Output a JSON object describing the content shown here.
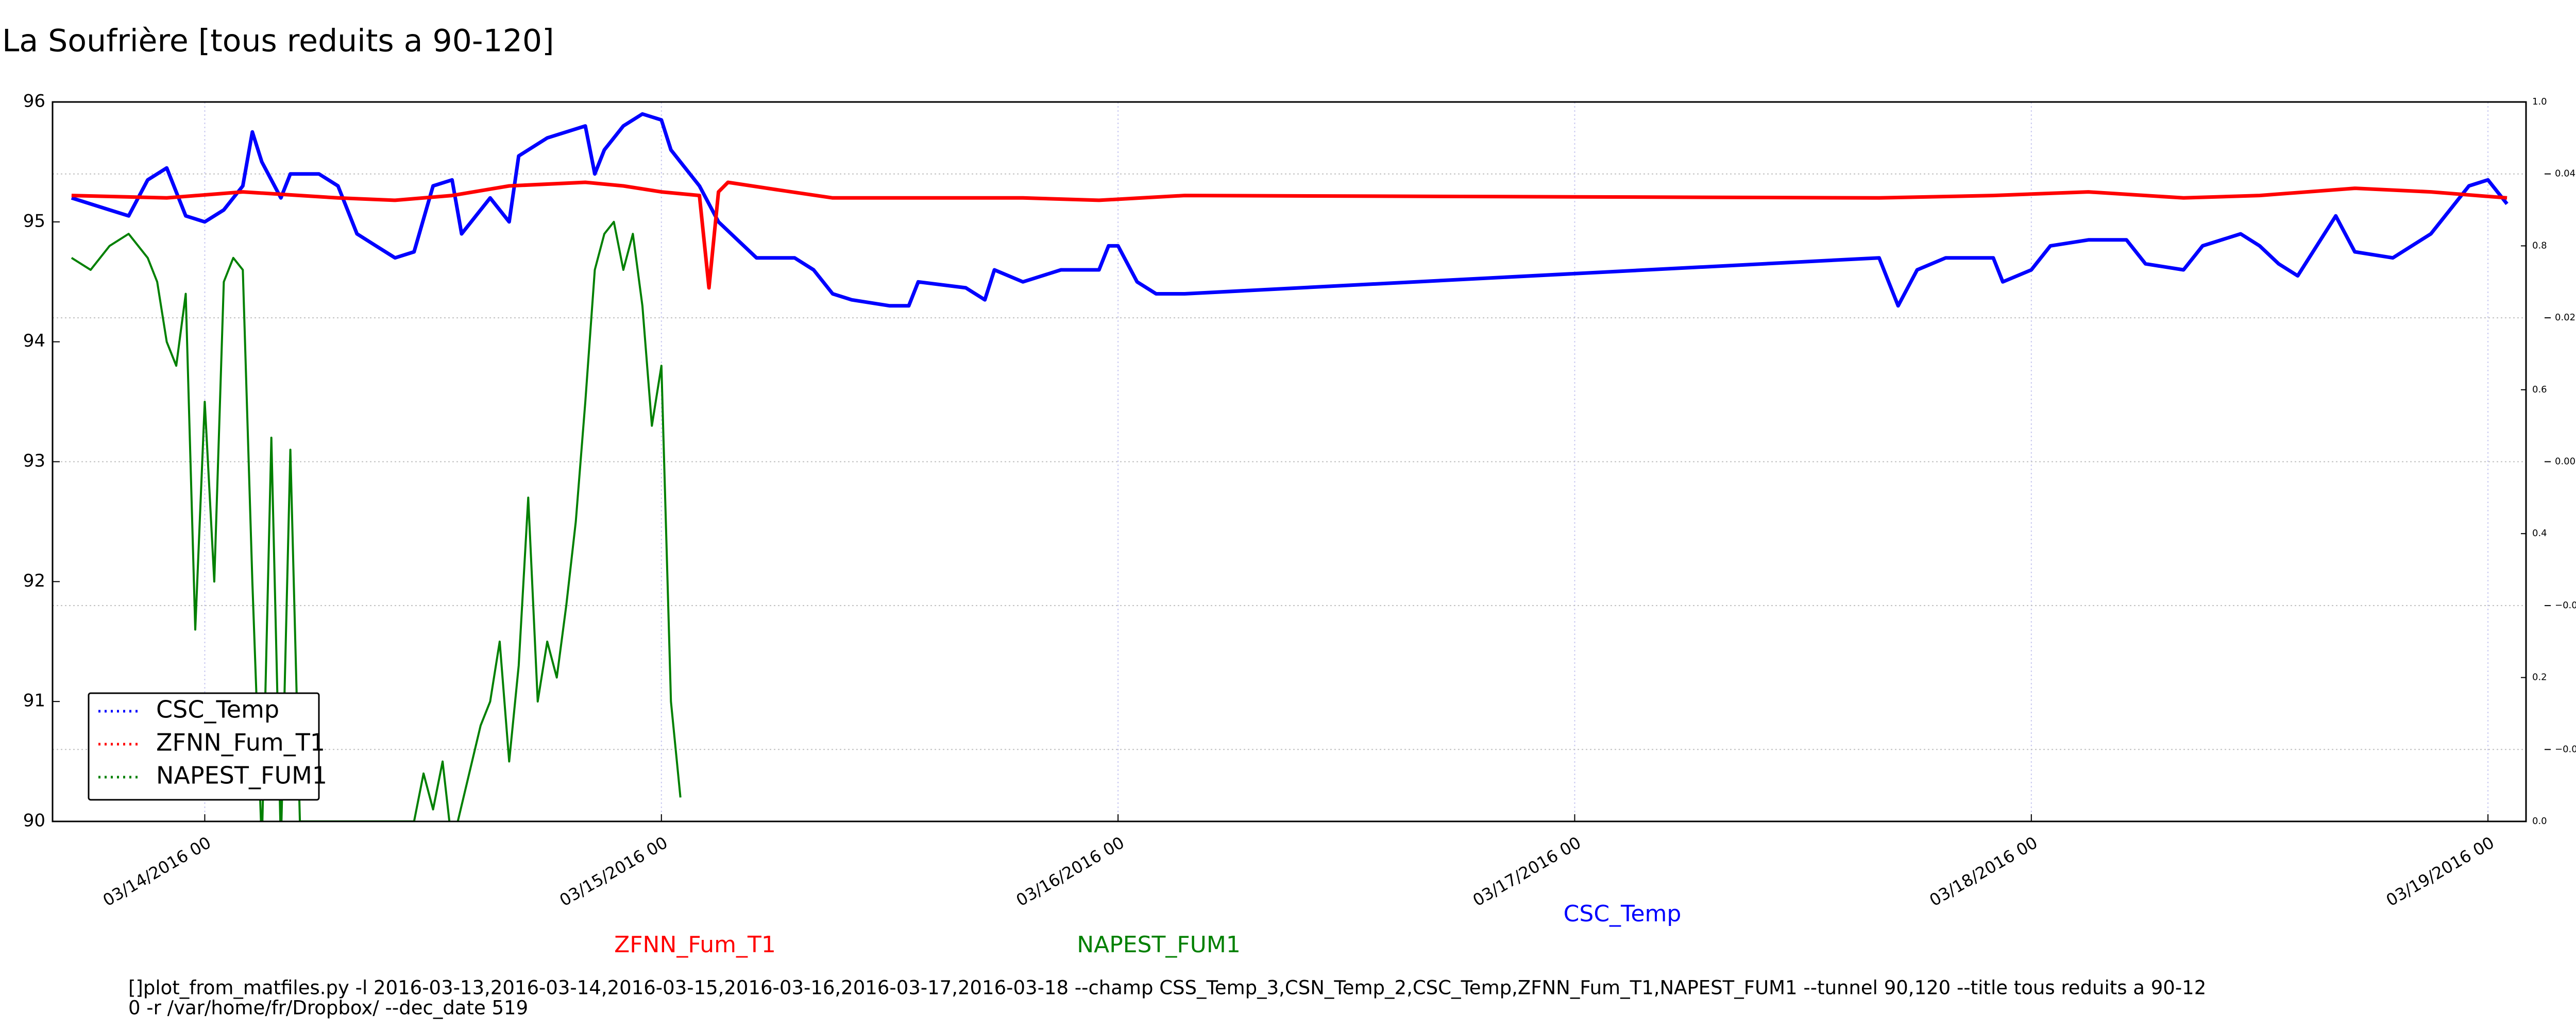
{
  "chart_data": {
    "type": "line",
    "title": "La Soufrière [tous reduits a 90-120]",
    "xlim": [
      "2016-03-13 16:00",
      "2016-03-19 02:00"
    ],
    "xticks": [
      {
        "value": "2016-03-14 00:00",
        "label": "03/14/2016 00"
      },
      {
        "value": "2016-03-15 00:00",
        "label": "03/15/2016 00"
      },
      {
        "value": "2016-03-16 00:00",
        "label": "03/16/2016 00"
      },
      {
        "value": "2016-03-17 00:00",
        "label": "03/17/2016 00"
      },
      {
        "value": "2016-03-18 00:00",
        "label": "03/18/2016 00"
      },
      {
        "value": "2016-03-19 00:00",
        "label": "03/19/2016 00"
      }
    ],
    "ylim": [
      90,
      96
    ],
    "yticks": [
      90,
      91,
      92,
      93,
      94,
      95,
      96
    ],
    "y2lim": [
      0,
      1
    ],
    "y2ticks": [
      {
        "value": 0,
        "label": "0.0"
      },
      0.2,
      0.4,
      0.6,
      0.8,
      {
        "value": 1,
        "label": "1.0"
      }
    ],
    "y3lim": [
      -0.05,
      0.05
    ],
    "y3ticks": [
      {
        "value": -0.04,
        "label": "−0.04"
      },
      {
        "value": -0.02,
        "label": "−0.02"
      },
      {
        "value": 0,
        "label": "0.00"
      },
      0.02,
      0.04
    ],
    "grid": true,
    "legend": "lower left",
    "series": [
      {
        "name": "CSC_Temp",
        "color": "#0000ff",
        "x": [
          "2016-03-13 17:00",
          "2016-03-13 19:00",
          "2016-03-13 20:00",
          "2016-03-13 21:00",
          "2016-03-13 22:00",
          "2016-03-13 23:00",
          "2016-03-14 00:00",
          "2016-03-14 01:00",
          "2016-03-14 02:00",
          "2016-03-14 02:30",
          "2016-03-14 03:00",
          "2016-03-14 04:00",
          "2016-03-14 04:30",
          "2016-03-14 06:00",
          "2016-03-14 07:00",
          "2016-03-14 08:00",
          "2016-03-14 09:00",
          "2016-03-14 10:00",
          "2016-03-14 11:00",
          "2016-03-14 12:00",
          "2016-03-14 13:00",
          "2016-03-14 13:30",
          "2016-03-14 14:00",
          "2016-03-14 15:00",
          "2016-03-14 16:00",
          "2016-03-14 16:30",
          "2016-03-14 18:00",
          "2016-03-14 20:00",
          "2016-03-14 20:30",
          "2016-03-14 21:00",
          "2016-03-14 22:00",
          "2016-03-14 23:00",
          "2016-03-15 00:00",
          "2016-03-15 00:30",
          "2016-03-15 01:00",
          "2016-03-15 02:00",
          "2016-03-15 03:00",
          "2016-03-15 04:00",
          "2016-03-15 05:00",
          "2016-03-15 07:00",
          "2016-03-15 08:00",
          "2016-03-15 09:00",
          "2016-03-15 10:00",
          "2016-03-15 12:00",
          "2016-03-15 13:00",
          "2016-03-15 13:30",
          "2016-03-15 16:00",
          "2016-03-15 17:00",
          "2016-03-15 17:30",
          "2016-03-15 19:00",
          "2016-03-15 21:00",
          "2016-03-15 23:00",
          "2016-03-15 23:30",
          "2016-03-16 00:00",
          "2016-03-16 01:00",
          "2016-03-16 02:00",
          "2016-03-16 03:30",
          "2016-03-17 16:00",
          "2016-03-17 16:30",
          "2016-03-17 17:00",
          "2016-03-17 18:00",
          "2016-03-17 19:30",
          "2016-03-17 22:00",
          "2016-03-17 22:30",
          "2016-03-18 00:00",
          "2016-03-18 01:00",
          "2016-03-18 03:00",
          "2016-03-18 05:00",
          "2016-03-18 06:00",
          "2016-03-18 08:00",
          "2016-03-18 09:00",
          "2016-03-18 11:00",
          "2016-03-18 12:00",
          "2016-03-18 13:00",
          "2016-03-18 14:00",
          "2016-03-18 15:00",
          "2016-03-18 16:00",
          "2016-03-18 17:00",
          "2016-03-18 19:00",
          "2016-03-18 21:00",
          "2016-03-18 22:00",
          "2016-03-18 23:00",
          "2016-03-19 00:00",
          "2016-03-19 01:00"
        ],
        "values": [
          95.2,
          95.1,
          95.05,
          95.35,
          95.45,
          95.05,
          95.0,
          95.1,
          95.3,
          95.75,
          95.5,
          95.2,
          95.4,
          95.4,
          95.3,
          94.9,
          94.8,
          94.7,
          94.75,
          95.3,
          95.35,
          94.9,
          95.0,
          95.2,
          95.0,
          95.55,
          95.7,
          95.8,
          95.4,
          95.6,
          95.8,
          95.9,
          95.85,
          95.6,
          95.5,
          95.3,
          95.0,
          94.85,
          94.7,
          94.7,
          94.6,
          94.4,
          94.35,
          94.3,
          94.3,
          94.5,
          94.45,
          94.35,
          94.6,
          94.5,
          94.6,
          94.6,
          94.8,
          94.8,
          94.5,
          94.4,
          94.4,
          94.7,
          94.5,
          94.3,
          94.6,
          94.7,
          94.7,
          94.5,
          94.6,
          94.8,
          94.85,
          94.85,
          94.65,
          94.6,
          94.8,
          94.9,
          94.8,
          94.65,
          94.55,
          94.8,
          95.05,
          94.75,
          94.7,
          94.9,
          95.1,
          95.3,
          95.35,
          95.15
        ]
      },
      {
        "name": "ZFNN_Fum_T1",
        "color": "#ff0000",
        "x": [
          "2016-03-13 17:00",
          "2016-03-13 22:00",
          "2016-03-14 02:00",
          "2016-03-14 07:00",
          "2016-03-14 10:00",
          "2016-03-14 13:00",
          "2016-03-14 16:00",
          "2016-03-14 20:00",
          "2016-03-14 22:00",
          "2016-03-15 00:00",
          "2016-03-15 02:00",
          "2016-03-15 02:30",
          "2016-03-15 03:00",
          "2016-03-15 03:30",
          "2016-03-15 06:00",
          "2016-03-15 09:00",
          "2016-03-15 14:00",
          "2016-03-15 19:00",
          "2016-03-15 23:00",
          "2016-03-16 03:30",
          "2016-03-17 16:00",
          "2016-03-17 22:00",
          "2016-03-18 03:00",
          "2016-03-18 08:00",
          "2016-03-18 12:00",
          "2016-03-18 17:00",
          "2016-03-18 21:00",
          "2016-03-19 01:00"
        ],
        "values": [
          95.22,
          95.2,
          95.25,
          95.2,
          95.18,
          95.22,
          95.3,
          95.33,
          95.3,
          95.25,
          95.22,
          94.45,
          95.25,
          95.33,
          95.27,
          95.2,
          95.2,
          95.2,
          95.18,
          95.22,
          95.2,
          95.22,
          95.25,
          95.2,
          95.22,
          95.28,
          95.25,
          95.2
        ]
      },
      {
        "name": "NAPEST_FUM1",
        "color": "#008000",
        "x": [
          "2016-03-13 17:00",
          "2016-03-13 18:00",
          "2016-03-13 19:00",
          "2016-03-13 20:00",
          "2016-03-13 21:00",
          "2016-03-13 21:30",
          "2016-03-13 22:00",
          "2016-03-13 22:30",
          "2016-03-13 23:00",
          "2016-03-13 23:30",
          "2016-03-14 00:00",
          "2016-03-14 00:30",
          "2016-03-14 01:00",
          "2016-03-14 01:30",
          "2016-03-14 02:00",
          "2016-03-14 02:30",
          "2016-03-14 03:00",
          "2016-03-14 03:30",
          "2016-03-14 04:00",
          "2016-03-14 04:30",
          "2016-03-14 05:00",
          "2016-03-14 06:00",
          "2016-03-14 11:00",
          "2016-03-14 11:30",
          "2016-03-14 12:00",
          "2016-03-14 12:30",
          "2016-03-14 13:00",
          "2016-03-14 14:30",
          "2016-03-14 15:00",
          "2016-03-14 15:30",
          "2016-03-14 16:00",
          "2016-03-14 16:30",
          "2016-03-14 17:00",
          "2016-03-14 17:30",
          "2016-03-14 18:00",
          "2016-03-14 18:30",
          "2016-03-14 19:00",
          "2016-03-14 19:30",
          "2016-03-14 20:00",
          "2016-03-14 20:30",
          "2016-03-14 21:00",
          "2016-03-14 21:30",
          "2016-03-14 22:00",
          "2016-03-14 22:30",
          "2016-03-14 23:00",
          "2016-03-14 23:30",
          "2016-03-15 00:00",
          "2016-03-15 00:30",
          "2016-03-15 01:00"
        ],
        "values": [
          94.7,
          94.6,
          94.8,
          94.9,
          94.7,
          94.5,
          94.0,
          93.8,
          94.4,
          91.6,
          93.5,
          92.0,
          94.5,
          94.7,
          94.6,
          92.0,
          89.8,
          93.2,
          89.8,
          93.1,
          90.0,
          90.0,
          90.0,
          90.4,
          90.1,
          90.5,
          89.8,
          90.8,
          91.0,
          91.5,
          90.5,
          91.3,
          92.7,
          91.0,
          91.5,
          91.2,
          91.8,
          92.5,
          93.5,
          94.6,
          94.9,
          95.0,
          94.6,
          94.9,
          94.3,
          93.3,
          93.8,
          91.0,
          90.2
        ]
      }
    ],
    "annotations": [
      {
        "text": "CSC_Temp",
        "color": "#0000ff"
      },
      {
        "text": "ZFNN_Fum_T1",
        "color": "#ff0000"
      },
      {
        "text": "NAPEST_FUM1",
        "color": "#008000"
      }
    ],
    "footer": [
      "[]plot_from_matfiles.py -l 2016-03-13,2016-03-14,2016-03-15,2016-03-16,2016-03-17,2016-03-18 --champ CSS_Temp_3,CSN_Temp_2,CSC_Temp,ZFNN_Fum_T1,NAPEST_FUM1 --tunnel 90,120 --title tous reduits a 90-12",
      "0 -r /var/home/fr/Dropbox/ --dec_date 519"
    ]
  }
}
